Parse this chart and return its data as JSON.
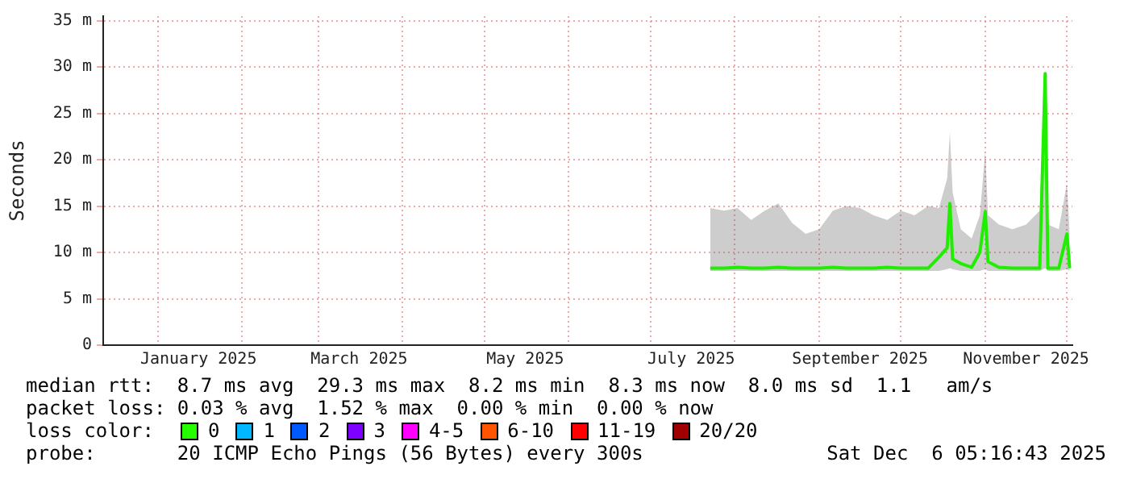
{
  "chart_data": {
    "type": "line",
    "ylabel": "Seconds",
    "xlim": [
      "2024-12-12",
      "2025-12-03"
    ],
    "ylim": [
      0,
      35.5
    ],
    "yticks": [
      0,
      {
        "value": 5,
        "label": "5 m"
      },
      {
        "value": 10,
        "label": "10 m"
      },
      {
        "value": 15,
        "label": "15 m"
      },
      {
        "value": 20,
        "label": "20 m"
      },
      {
        "value": 25,
        "label": "25 m"
      },
      {
        "value": 30,
        "label": "30 m"
      },
      {
        "value": 35,
        "label": "35 m"
      }
    ],
    "xticks": [
      {
        "value": "2025-01-01",
        "label": null
      },
      {
        "value": "2025-01-16",
        "label": "January 2025"
      },
      {
        "value": "2025-02-01",
        "label": null
      },
      {
        "value": "2025-03-01",
        "label": null
      },
      {
        "value": "2025-03-16",
        "label": "March 2025"
      },
      {
        "value": "2025-04-01",
        "label": null
      },
      {
        "value": "2025-05-01",
        "label": null
      },
      {
        "value": "2025-05-16",
        "label": "May 2025"
      },
      {
        "value": "2025-06-01",
        "label": null
      },
      {
        "value": "2025-07-01",
        "label": null
      },
      {
        "value": "2025-07-16",
        "label": "July 2025"
      },
      {
        "value": "2025-08-01",
        "label": null
      },
      {
        "value": "2025-09-01",
        "label": null
      },
      {
        "value": "2025-09-16",
        "label": "September 2025"
      },
      {
        "value": "2025-10-01",
        "label": null
      },
      {
        "value": "2025-11-01",
        "label": null
      },
      {
        "value": "2025-11-16",
        "label": "November 2025"
      },
      {
        "value": "2025-12-01",
        "label": null
      }
    ],
    "grid": true,
    "legend": "bottom",
    "legend_title": "loss color:",
    "marker": "none",
    "series": [
      {
        "color": "#20ee00",
        "x": [
          "2025-07-23",
          "2025-07-28",
          "2025-08-02",
          "2025-08-07",
          "2025-08-12",
          "2025-08-17",
          "2025-08-22",
          "2025-08-27",
          "2025-09-01",
          "2025-09-06",
          "2025-09-11",
          "2025-09-16",
          "2025-09-21",
          "2025-09-26",
          "2025-10-01",
          "2025-10-06",
          "2025-10-11",
          "2025-10-15",
          "2025-10-18",
          "2025-10-19",
          "2025-10-20",
          "2025-10-23",
          "2025-10-27",
          "2025-10-30",
          "2025-11-01",
          "2025-11-02",
          "2025-11-06",
          "2025-11-11",
          "2025-11-16",
          "2025-11-21",
          "2025-11-23",
          "2025-11-24",
          "2025-11-28",
          "2025-12-01",
          "2025-12-02"
        ],
        "values": [
          8.3,
          8.3,
          8.4,
          8.3,
          8.3,
          8.4,
          8.3,
          8.3,
          8.3,
          8.4,
          8.3,
          8.3,
          8.3,
          8.4,
          8.3,
          8.3,
          8.3,
          9.5,
          10.5,
          15.3,
          9.3,
          8.8,
          8.4,
          10,
          14.4,
          9,
          8.4,
          8.3,
          8.3,
          8.3,
          29.3,
          8.3,
          8.3,
          12,
          8.3
        ],
        "lower": [
          8,
          8,
          8,
          8,
          8,
          8,
          8,
          8,
          8,
          8,
          8,
          8,
          8,
          8,
          8,
          8,
          8,
          8,
          8.2,
          8.3,
          8.2,
          8,
          8,
          8,
          8.2,
          8,
          8,
          8,
          8,
          8,
          8.3,
          8,
          8,
          8.2,
          8
        ],
        "upper": [
          14.8,
          14.5,
          14.8,
          13.5,
          14.5,
          15.3,
          13.2,
          12,
          12.5,
          14.5,
          15,
          14.8,
          14,
          13.5,
          14.5,
          14,
          15,
          14.8,
          18,
          23,
          16.5,
          12.5,
          11.5,
          14,
          21,
          14,
          13,
          12.5,
          13,
          14.5,
          29.3,
          13,
          12.5,
          17.5,
          12
        ]
      },
      {
        "name": "0",
        "color": "#26ff00"
      },
      {
        "name": "1",
        "color": "#00b8ff"
      },
      {
        "name": "2",
        "color": "#0059ff"
      },
      {
        "name": "3",
        "color": "#7e00ff"
      },
      {
        "name": "4-5",
        "color": "#ff00ff"
      },
      {
        "name": "6-10",
        "color": "#ff5500"
      },
      {
        "name": "11-19",
        "color": "#ff0000"
      },
      {
        "name": "20/20",
        "color": "#a10000"
      }
    ],
    "annotations": [
      "median rtt:  8.7 ms avg  29.3 ms max  8.2 ms min  8.3 ms now  8.0 ms sd  1.1   am/s",
      "packet loss: 0.03 % avg  1.52 % max  0.00 % min  0.00 % now",
      "probe:       20 ICMP Echo Pings (56 Bytes) every 300s",
      "Sat Dec  6 05:16:43 2025"
    ]
  }
}
